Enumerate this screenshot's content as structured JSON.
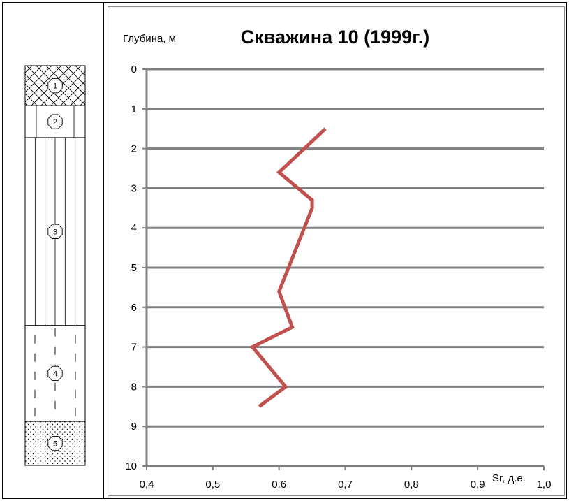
{
  "chart_data": {
    "type": "line",
    "title": "Скважина 10 (1999г.)",
    "ylabel": "Глубина, м",
    "xlabel": "Sr, д.е.",
    "xlim": [
      0.4,
      1.0
    ],
    "ylim": [
      0,
      10
    ],
    "y_inverted": true,
    "x_ticks": [
      "0,4",
      "0,5",
      "0,6",
      "0,7",
      "0,8",
      "0,9",
      "1,0"
    ],
    "y_ticks": [
      "0",
      "1",
      "2",
      "3",
      "4",
      "5",
      "6",
      "7",
      "8",
      "9",
      "10"
    ],
    "grid": "horizontal",
    "series": [
      {
        "color": "#c0504d",
        "x": [
          0.67,
          0.6,
          0.65,
          0.65,
          0.6,
          0.62,
          0.56,
          0.61,
          0.57
        ],
        "y": [
          1.5,
          2.6,
          3.3,
          3.5,
          5.6,
          6.5,
          7.0,
          8.0,
          8.5
        ]
      }
    ]
  },
  "column": {
    "layers": [
      {
        "number": "1",
        "pattern": "cross-hatch",
        "top": 0.0,
        "bottom": 1.0
      },
      {
        "number": "2",
        "pattern": "vertical-pair",
        "top": 1.0,
        "bottom": 1.8
      },
      {
        "number": "3",
        "pattern": "vertical-lines",
        "top": 1.8,
        "bottom": 6.5
      },
      {
        "number": "4",
        "pattern": "dashed-vertical",
        "top": 6.5,
        "bottom": 8.9
      },
      {
        "number": "5",
        "pattern": "dots",
        "top": 8.9,
        "bottom": 10.0
      }
    ]
  }
}
